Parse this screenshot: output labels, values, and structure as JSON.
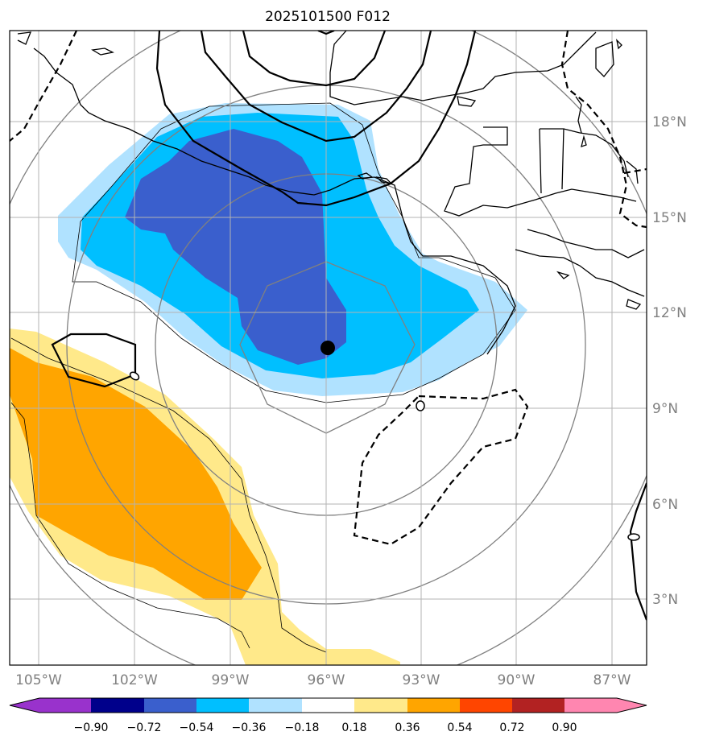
{
  "title": "2025101500 F012",
  "longitude_labels": [
    "105°W",
    "102°W",
    "99°W",
    "96°W",
    "93°W",
    "90°W",
    "87°W"
  ],
  "latitude_labels": [
    "18°N",
    "15°N",
    "12°N",
    "9°N",
    "6°N",
    "3°N"
  ],
  "colorbar": {
    "levels": [
      "−0.90",
      "−0.72",
      "−0.54",
      "−0.36",
      "−0.18",
      "0.18",
      "0.36",
      "0.54",
      "0.72",
      "0.90"
    ],
    "colors": [
      "#9932cc",
      "#00008b",
      "#3a5fcd",
      "#00bfff",
      "#b0e2ff",
      "#ffffff",
      "#ffe98a",
      "#ffa500",
      "#ff4500",
      "#b22222",
      "#ff86b0"
    ]
  },
  "center_marker": {
    "lon": -96.0,
    "lat": 10.9
  },
  "fill_colors": {
    "neg_light": "#b0e2ff",
    "neg_mid": "#00bfff",
    "neg_dark": "#3a5fcd",
    "pos_light": "#ffe98a",
    "pos_mid": "#ffa500"
  }
}
